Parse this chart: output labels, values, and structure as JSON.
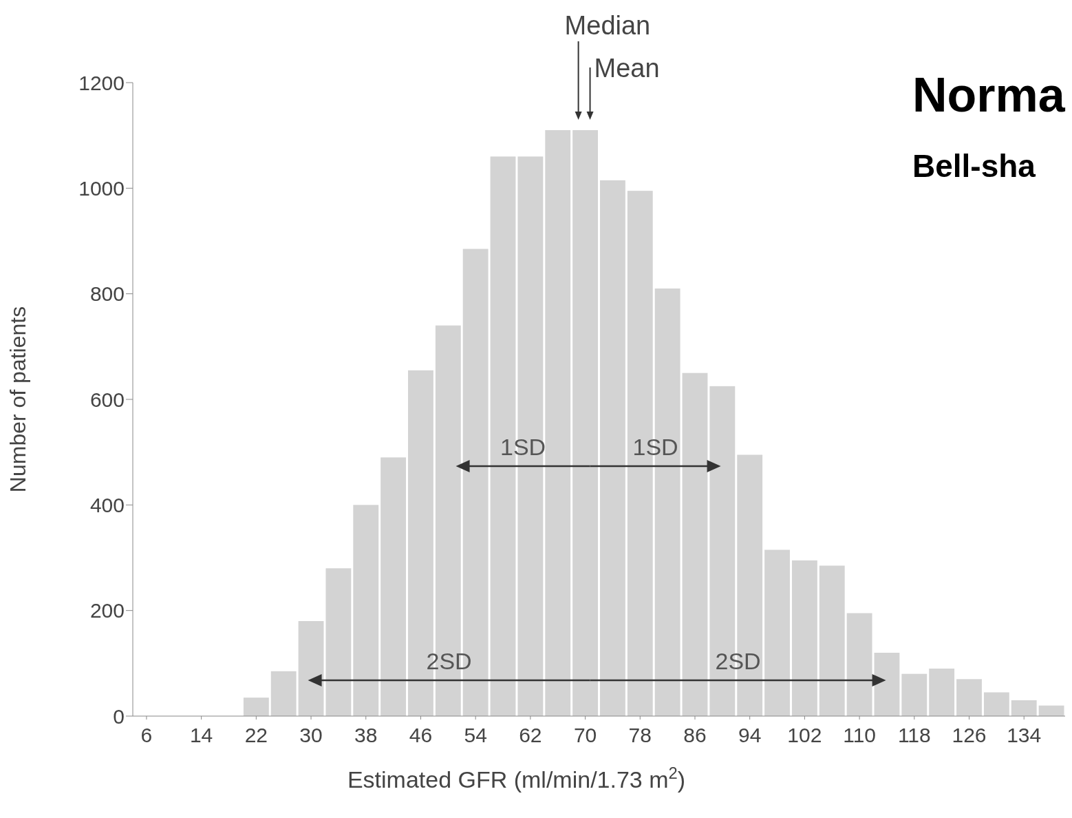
{
  "chart_data": {
    "type": "histogram",
    "title": "Norma",
    "subtitle": "Bell-sha",
    "xlabel": "Estimated GFR (ml/min/1.73 m$^{2}$)",
    "ylabel": "Number of patients",
    "bins": [
      4,
      8,
      12,
      16,
      20,
      24,
      28,
      32,
      36,
      40,
      44,
      48,
      52,
      56,
      60,
      64,
      68,
      72,
      76,
      80,
      84,
      88,
      92,
      96,
      100,
      104,
      108,
      112,
      116,
      120,
      124,
      128,
      132,
      136,
      140
    ],
    "values": [
      null,
      null,
      null,
      null,
      35,
      85,
      180,
      280,
      400,
      490,
      655,
      740,
      885,
      1060,
      1060,
      1110,
      1110,
      1015,
      995,
      810,
      650,
      625,
      495,
      315,
      295,
      285,
      195,
      120,
      80,
      90,
      70,
      45,
      30,
      20
    ],
    "color": "#d3d3d3",
    "xlim": [
      4,
      140
    ],
    "xticks": [
      6,
      14,
      22,
      30,
      38,
      46,
      54,
      62,
      70,
      78,
      86,
      94,
      102,
      110,
      118,
      126,
      134
    ],
    "ylim": [
      0,
      1200
    ],
    "yticks": [
      0,
      200,
      400,
      600,
      800,
      1000,
      1200
    ],
    "ref_lines": [
      {
        "axis": "x",
        "value": 69,
        "label": "Median",
        "color": "#333333"
      },
      {
        "axis": "x",
        "value": 70.7,
        "label": "Mean",
        "color": "#333333"
      }
    ],
    "annotations": [
      "1SD",
      "1SD",
      "2SD",
      "2SD"
    ]
  }
}
